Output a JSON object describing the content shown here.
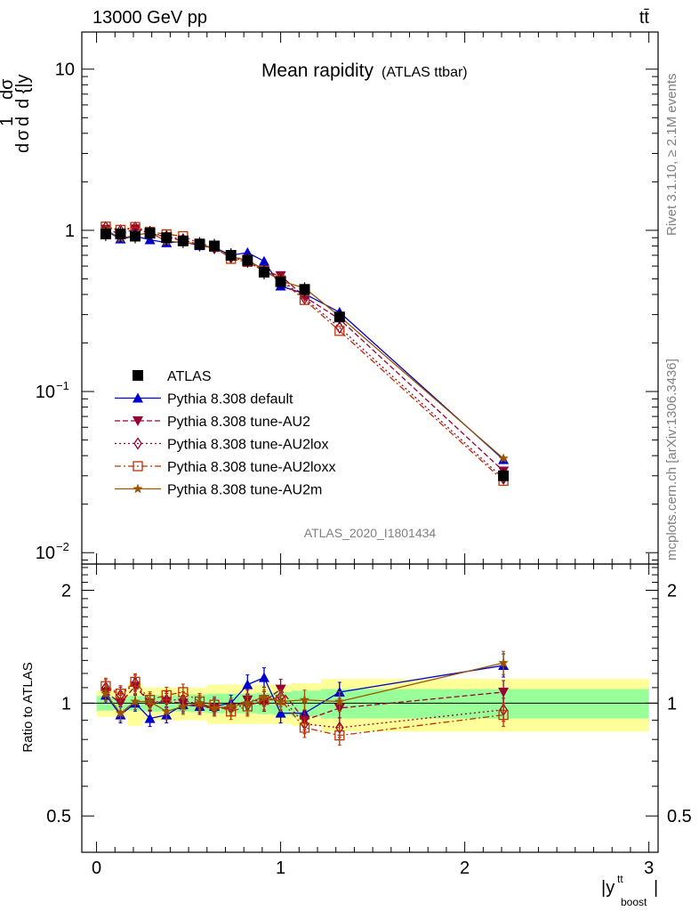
{
  "header": {
    "left": "13000 GeV pp",
    "right": "tt̄"
  },
  "side_text": {
    "upper": "Rivet 3.1.10, ≥ 2.1M events",
    "lower": "mcplots.cern.ch [arXiv:1306.3436]"
  },
  "chart_data": {
    "type": "line",
    "title": "Mean rapidity",
    "subtitle": "(ATLAS ttbar)",
    "analysis_tag": "ATLAS_2020_I1801434",
    "xlabel": "|y",
    "xlabel_sup": "tt",
    "xlabel_sub": "boost",
    "ylabel_main": "dσ/d y (normalized)",
    "ylabel_ratio": "Ratio to ATLAS",
    "xlim": [
      -0.08,
      3.05
    ],
    "ylim_main": [
      0.0085,
      17
    ],
    "ylog_main": true,
    "ylim_ratio": [
      0.4,
      2.35
    ],
    "ylog_ratio": true,
    "x_ticks": [
      {
        "v": 0,
        "label": "0"
      },
      {
        "v": 1,
        "label": "1"
      },
      {
        "v": 2,
        "label": "2"
      },
      {
        "v": 3,
        "label": "3"
      }
    ],
    "y_ticks_main": [
      {
        "v": 10,
        "label": "10"
      },
      {
        "v": 1,
        "label": "1"
      },
      {
        "v": 0.1,
        "label": "10",
        "exp": "−1"
      },
      {
        "v": 0.01,
        "label": "10",
        "exp": "−2"
      }
    ],
    "y_ticks_ratio": [
      {
        "v": 2,
        "label": "2"
      },
      {
        "v": 1,
        "label": "1"
      },
      {
        "v": 0.5,
        "label": "0.5"
      }
    ],
    "x": [
      0.05,
      0.13,
      0.21,
      0.29,
      0.38,
      0.47,
      0.56,
      0.64,
      0.73,
      0.82,
      0.91,
      1.0,
      1.13,
      1.32,
      2.21
    ],
    "bin_edges": [
      0.0,
      0.09,
      0.17,
      0.25,
      0.34,
      0.42,
      0.51,
      0.6,
      0.69,
      0.78,
      0.87,
      0.96,
      1.06,
      1.22,
      1.42,
      3.0
    ],
    "data": {
      "name": "ATLAS",
      "values": [
        0.95,
        0.95,
        0.92,
        0.96,
        0.9,
        0.86,
        0.82,
        0.8,
        0.7,
        0.65,
        0.55,
        0.48,
        0.43,
        0.29,
        0.03
      ],
      "band_inner": [
        0.045,
        0.04,
        0.045,
        0.05,
        0.05,
        0.05,
        0.055,
        0.06,
        0.06,
        0.06,
        0.065,
        0.07,
        0.08,
        0.09,
        0.09
      ],
      "band_outer": [
        0.08,
        0.08,
        0.13,
        0.1,
        0.1,
        0.1,
        0.1,
        0.12,
        0.12,
        0.12,
        0.12,
        0.12,
        0.13,
        0.16,
        0.16
      ]
    },
    "legend": [
      "ATLAS",
      "Pythia 8.308 default",
      "Pythia 8.308 tune-AU2",
      "Pythia 8.308 tune-AU2lox",
      "Pythia 8.308 tune-AU2loxx",
      "Pythia 8.308 tune-AU2m"
    ],
    "series": [
      {
        "name": "Pythia 8.308 default",
        "color": "#0000cc",
        "marker": "triangle-up",
        "dash": "",
        "ratio": [
          1.05,
          0.93,
          1.0,
          0.91,
          0.93,
          0.99,
          0.98,
          0.98,
          1.0,
          1.12,
          1.17,
          0.94,
          0.94,
          1.07,
          1.26
        ]
      },
      {
        "name": "Pythia 8.308 tune-AU2",
        "color": "#990033",
        "marker": "triangle-down",
        "dash": "6,3",
        "ratio": [
          1.07,
          1.0,
          1.11,
          1.0,
          1.01,
          1.0,
          0.98,
          0.97,
          0.97,
          1.02,
          1.01,
          1.09,
          0.9,
          0.97,
          1.07
        ]
      },
      {
        "name": "Pythia 8.308 tune-AU2lox",
        "color": "#990033",
        "marker": "diamond-open",
        "dash": "2,3",
        "ratio": [
          1.1,
          1.05,
          1.13,
          1.0,
          1.02,
          1.02,
          0.99,
          0.97,
          0.97,
          0.99,
          1.01,
          1.04,
          0.88,
          0.86,
          0.96
        ]
      },
      {
        "name": "Pythia 8.308 tune-AU2loxx",
        "color": "#bb3300",
        "marker": "square-open",
        "dash": "7,3,2,3",
        "ratio": [
          1.11,
          1.06,
          1.14,
          1.02,
          1.05,
          1.07,
          1.01,
          0.99,
          0.95,
          0.98,
          1.02,
          1.02,
          0.86,
          0.82,
          0.93
        ]
      },
      {
        "name": "Pythia 8.308 tune-AU2m",
        "color": "#995500",
        "marker": "star",
        "dash": "",
        "ratio": [
          1.06,
          0.94,
          1.01,
          1.01,
          0.95,
          0.98,
          1.0,
          0.97,
          0.98,
          1.0,
          1.04,
          1.01,
          1.02,
          1.01,
          1.28
        ]
      }
    ]
  }
}
